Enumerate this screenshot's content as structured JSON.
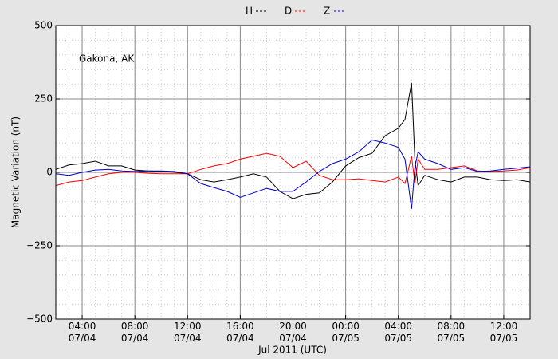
{
  "chart_data": {
    "type": "line",
    "annotation": "Gakona, AK",
    "xlabel": "Jul 2011 (UTC)",
    "ylabel": "Magnetic Variation (nT)",
    "x": [
      2,
      3,
      4,
      5,
      6,
      7,
      8,
      9,
      10,
      11,
      12,
      13,
      14,
      15,
      16,
      17,
      18,
      19,
      20,
      21,
      22,
      23,
      24,
      25,
      26,
      27,
      28,
      28.5,
      29,
      29.25,
      29.5,
      30,
      31,
      32,
      33,
      34,
      35,
      36,
      37,
      38
    ],
    "series": [
      {
        "name": "H",
        "color": "#000000",
        "values": [
          10,
          25,
          30,
          38,
          22,
          22,
          8,
          5,
          3,
          0,
          -5,
          -25,
          -33,
          -25,
          -16,
          -5,
          -16,
          -65,
          -90,
          -75,
          -70,
          -33,
          22,
          50,
          65,
          125,
          150,
          180,
          305,
          45,
          -45,
          -10,
          -25,
          -33,
          -16,
          -16,
          -25,
          -28,
          -25,
          -33
        ]
      },
      {
        "name": "D",
        "color": "#ff0000",
        "values": [
          -45,
          -33,
          -28,
          -16,
          -5,
          0,
          0,
          -3,
          -5,
          -5,
          -5,
          10,
          22,
          30,
          45,
          55,
          65,
          55,
          16,
          38,
          -10,
          -25,
          -25,
          -22,
          -28,
          -33,
          -16,
          -38,
          55,
          -38,
          45,
          10,
          10,
          16,
          22,
          5,
          3,
          5,
          8,
          16
        ]
      },
      {
        "name": "Z",
        "color": "#0000cc",
        "values": [
          -5,
          -10,
          0,
          8,
          10,
          5,
          3,
          5,
          5,
          3,
          -5,
          -38,
          -52,
          -65,
          -85,
          -70,
          -55,
          -65,
          -65,
          -33,
          3,
          30,
          45,
          70,
          110,
          100,
          85,
          45,
          -125,
          16,
          70,
          45,
          30,
          10,
          16,
          3,
          5,
          10,
          14,
          19
        ]
      }
    ],
    "xlim": [
      2,
      38
    ],
    "xticks": [
      {
        "value": 4,
        "label": "04:00\n07/04"
      },
      {
        "value": 8,
        "label": "08:00\n07/04"
      },
      {
        "value": 12,
        "label": "12:00\n07/04"
      },
      {
        "value": 16,
        "label": "16:00\n07/04"
      },
      {
        "value": 20,
        "label": "20:00\n07/04"
      },
      {
        "value": 24,
        "label": "00:00\n07/05"
      },
      {
        "value": 28,
        "label": "04:00\n07/05"
      },
      {
        "value": 32,
        "label": "08:00\n07/05"
      },
      {
        "value": 36,
        "label": "12:00\n07/05"
      }
    ],
    "ylim": [
      -500,
      500
    ],
    "yticks": [
      {
        "value": -500,
        "label": "−500"
      },
      {
        "value": -250,
        "label": "−250"
      },
      0,
      250,
      500
    ],
    "grid": true
  }
}
